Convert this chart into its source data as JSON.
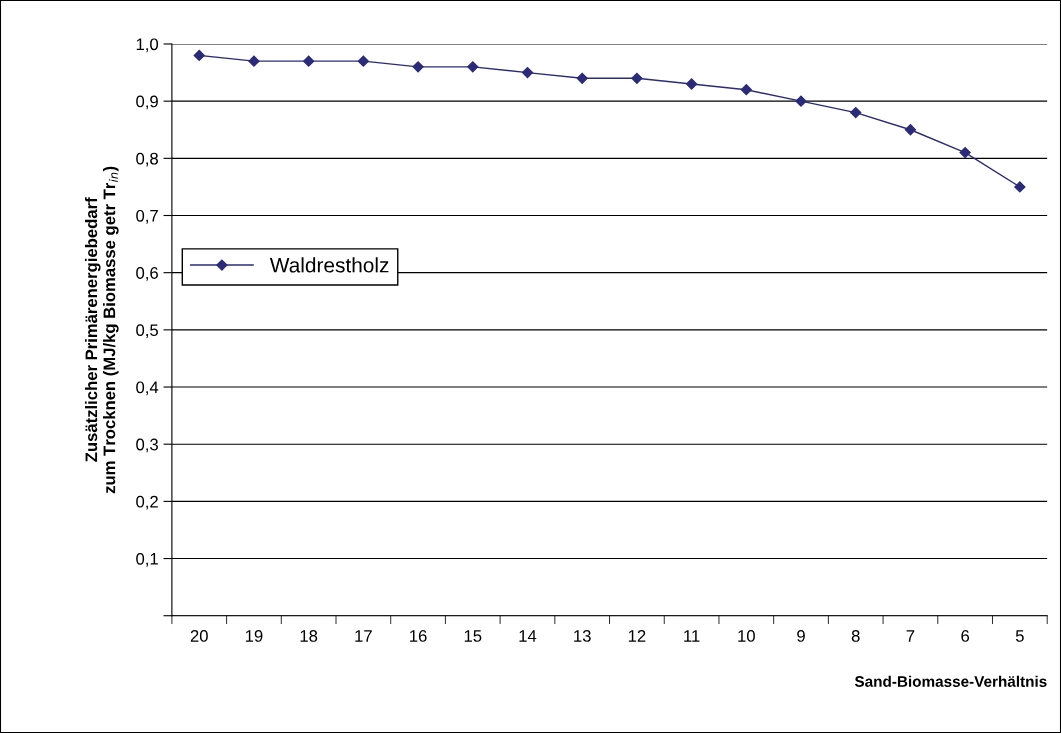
{
  "chart_data": {
    "type": "line",
    "xlabel": "Sand-Biomasse-Verhältnis",
    "ylabel": "Zusätzlicher Primärenergiebedarf\nzum Trocknen (MJ/kg Biomasse getr Tr$_{in}$)",
    "categories": [
      "20",
      "19",
      "18",
      "17",
      "16",
      "15",
      "14",
      "13",
      "12",
      "11",
      "10",
      "9",
      "8",
      "7",
      "6",
      "5"
    ],
    "series": [
      {
        "name": "Waldrestholz",
        "color": "#2b2b78",
        "values": [
          0.98,
          0.97,
          0.97,
          0.97,
          0.96,
          0.96,
          0.95,
          0.94,
          0.94,
          0.93,
          0.92,
          0.9,
          0.88,
          0.85,
          0.81,
          0.75
        ]
      }
    ],
    "ylim": [
      0,
      1
    ],
    "yticks": [
      {
        "value": 0,
        "label": null
      },
      {
        "value": 0.1,
        "label": "0,1"
      },
      {
        "value": 0.2,
        "label": "0,2"
      },
      {
        "value": 0.3,
        "label": "0,3"
      },
      {
        "value": 0.4,
        "label": "0,4"
      },
      {
        "value": 0.5,
        "label": "0,5"
      },
      {
        "value": 0.6,
        "label": "0,6"
      },
      {
        "value": 0.7,
        "label": "0,7"
      },
      {
        "value": 0.8,
        "label": "0,8"
      },
      {
        "value": 0.9,
        "label": "0,9"
      },
      {
        "value": 1.0,
        "label": "1,0"
      }
    ],
    "grid": "y",
    "legend": "center left",
    "marker": "diamond",
    "line_style": "solid"
  }
}
